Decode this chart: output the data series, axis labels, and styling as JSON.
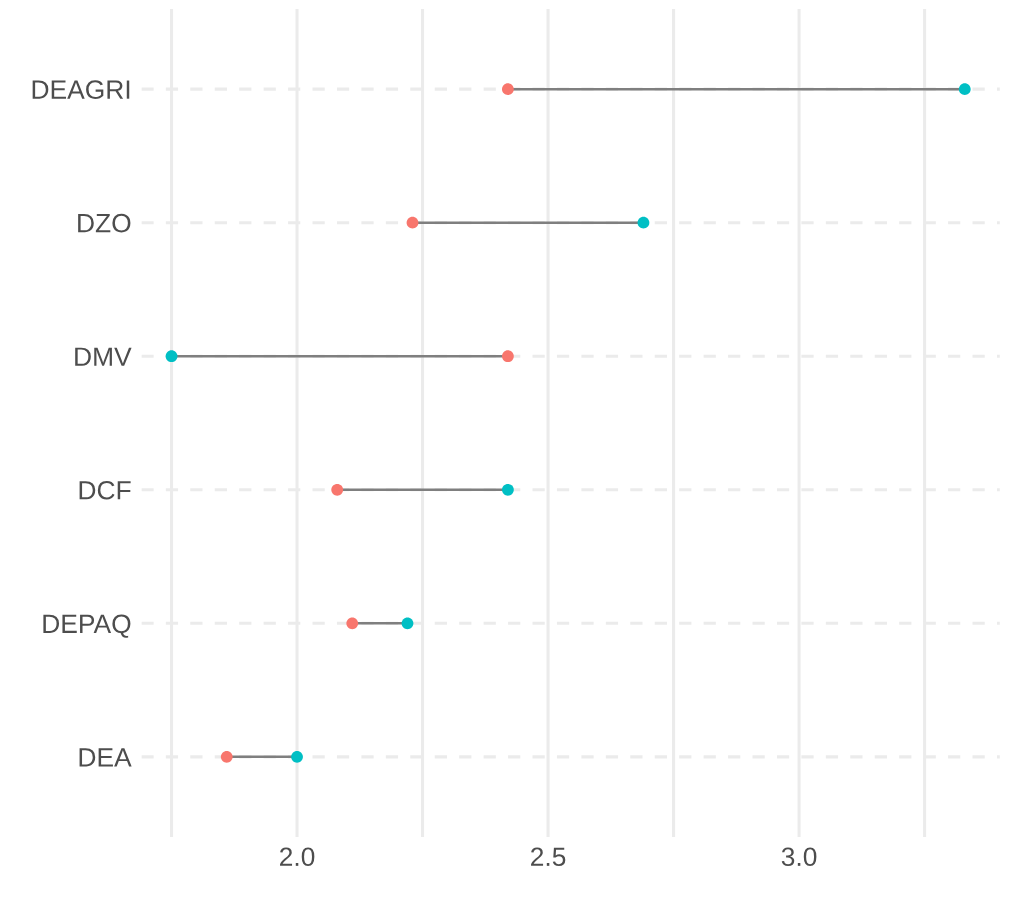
{
  "chart_data": {
    "type": "scatter",
    "orientation": "horizontal",
    "categories": [
      "DEAGRI",
      "DZO",
      "DMV",
      "DCF",
      "DEPAQ",
      "DEA"
    ],
    "series": [
      {
        "color": "#f8766d",
        "values": [
          2.42,
          2.23,
          2.42,
          2.08,
          2.11,
          1.86
        ]
      },
      {
        "color": "#00bfc4",
        "values": [
          3.33,
          2.69,
          1.75,
          2.42,
          2.22,
          2.0
        ]
      }
    ],
    "xlim": [
      1.69,
      3.4
    ],
    "xticks": [
      {
        "value": 1.75,
        "label": null
      },
      {
        "value": 2,
        "label": "2.0"
      },
      {
        "value": 2.25,
        "label": null
      },
      2.5,
      {
        "value": 2.75,
        "label": null
      },
      {
        "value": 3,
        "label": "3.0"
      },
      {
        "value": 3.25,
        "label": null
      }
    ],
    "grid": true,
    "marker": "circle"
  }
}
